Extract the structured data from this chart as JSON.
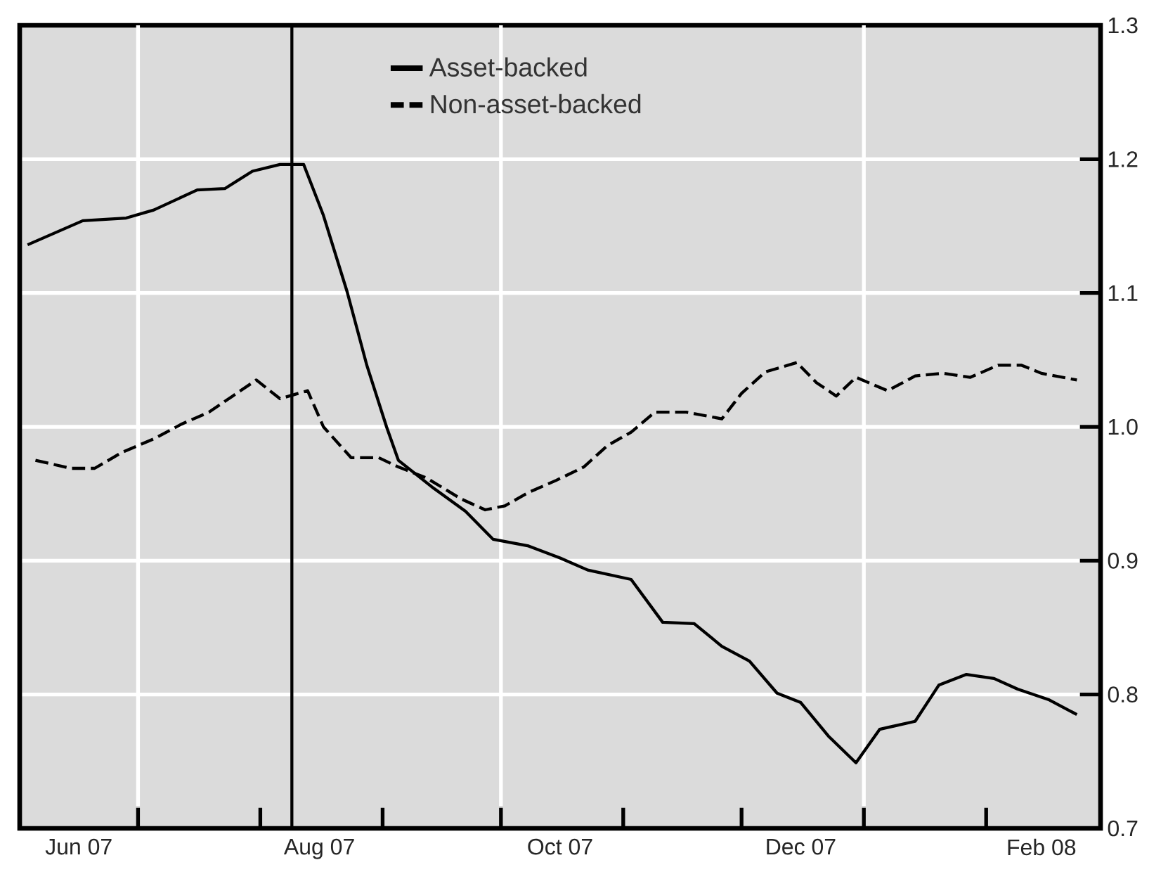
{
  "chart_data": {
    "type": "line",
    "xlim": [
      "2007-06-01",
      "2008-03-01"
    ],
    "ylim": [
      0.7,
      1.3
    ],
    "xticks": [
      {
        "value": "2007-07-01",
        "label": null
      },
      {
        "value": "2007-08-01",
        "label": null
      },
      {
        "value": "2007-09-01",
        "label": null
      },
      {
        "value": "2007-10-01",
        "label": null
      },
      {
        "value": "2007-11-01",
        "label": null
      },
      {
        "value": "2007-12-01",
        "label": null
      },
      {
        "value": "2008-01-01",
        "label": null
      },
      {
        "value": "2008-02-01",
        "label": null
      },
      {
        "value": "2007-06-16",
        "label": "Jun 07"
      },
      {
        "value": "2007-08-16",
        "label": "Aug 07"
      },
      {
        "value": "2007-10-16",
        "label": "Oct 07"
      },
      {
        "value": "2007-12-16",
        "label": "Dec 07"
      },
      {
        "value": "2008-02-15",
        "label": "Feb 08"
      }
    ],
    "yticks": [
      0.7,
      0.8,
      0.9,
      {
        "value": 1.0,
        "label": "1.0"
      },
      1.1,
      1.2,
      1.3
    ],
    "grid": "y",
    "legend": "top",
    "ref_lines": [
      {
        "axis": "x",
        "value": "2007-07-01",
        "color": "#ffffff"
      },
      {
        "axis": "x",
        "value": "2007-10-01",
        "color": "#ffffff"
      },
      {
        "axis": "x",
        "value": "2008-01-01",
        "color": "#ffffff"
      },
      {
        "axis": "x",
        "value": "2007-08-09",
        "color": "#000000"
      }
    ],
    "series": [
      {
        "name": "Asset-backed",
        "color": "#000000",
        "line_style": "solid",
        "x": [
          "2007-06-03",
          "2007-06-17",
          "2007-06-28",
          "2007-07-05",
          "2007-07-16",
          "2007-07-23",
          "2007-07-30",
          "2007-08-06",
          "2007-08-12",
          "2007-08-17",
          "2007-08-23",
          "2007-08-28",
          "2007-09-02",
          "2007-09-05",
          "2007-09-14",
          "2007-09-22",
          "2007-09-29",
          "2007-10-08",
          "2007-10-16",
          "2007-10-23",
          "2007-11-03",
          "2007-11-11",
          "2007-11-19",
          "2007-11-26",
          "2007-12-03",
          "2007-12-10",
          "2007-12-16",
          "2007-12-23",
          "2007-12-30",
          "2008-01-05",
          "2008-01-14",
          "2008-01-20",
          "2008-01-27",
          "2008-02-03",
          "2008-02-09",
          "2008-02-17",
          "2008-02-24"
        ],
        "values": [
          1.136,
          1.154,
          1.156,
          1.162,
          1.177,
          1.178,
          1.191,
          1.196,
          1.196,
          1.158,
          1.101,
          1.046,
          1.0,
          0.975,
          0.954,
          0.937,
          0.916,
          0.911,
          0.902,
          0.893,
          0.886,
          0.854,
          0.853,
          0.836,
          0.825,
          0.801,
          0.794,
          0.769,
          0.749,
          0.774,
          0.78,
          0.807,
          0.815,
          0.812,
          0.804,
          0.796,
          0.785
        ]
      },
      {
        "name": "Non-asset-backed",
        "color": "#000000",
        "line_style": "dashed",
        "x": [
          "2007-06-05",
          "2007-06-14",
          "2007-06-20",
          "2007-06-27",
          "2007-07-05",
          "2007-07-12",
          "2007-07-19",
          "2007-07-25",
          "2007-07-31",
          "2007-08-06",
          "2007-08-13",
          "2007-08-17",
          "2007-08-24",
          "2007-08-31",
          "2007-09-05",
          "2007-09-12",
          "2007-09-21",
          "2007-09-27",
          "2007-10-02",
          "2007-10-08",
          "2007-10-15",
          "2007-10-22",
          "2007-10-28",
          "2007-11-03",
          "2007-11-09",
          "2007-11-17",
          "2007-11-26",
          "2007-12-01",
          "2007-12-07",
          "2007-12-15",
          "2007-12-20",
          "2007-12-25",
          "2007-12-30",
          "2008-01-07",
          "2008-01-14",
          "2008-01-21",
          "2008-01-28",
          "2008-02-04",
          "2008-02-10",
          "2008-02-15",
          "2008-02-24"
        ],
        "values": [
          0.975,
          0.969,
          0.969,
          0.981,
          0.991,
          1.002,
          1.011,
          1.023,
          1.035,
          1.021,
          1.027,
          1.0,
          0.977,
          0.977,
          0.97,
          0.962,
          0.946,
          0.938,
          0.941,
          0.951,
          0.96,
          0.97,
          0.986,
          0.996,
          1.011,
          1.011,
          1.006,
          1.025,
          1.041,
          1.048,
          1.033,
          1.023,
          1.037,
          1.027,
          1.038,
          1.04,
          1.037,
          1.046,
          1.046,
          1.04,
          1.035
        ]
      }
    ]
  }
}
